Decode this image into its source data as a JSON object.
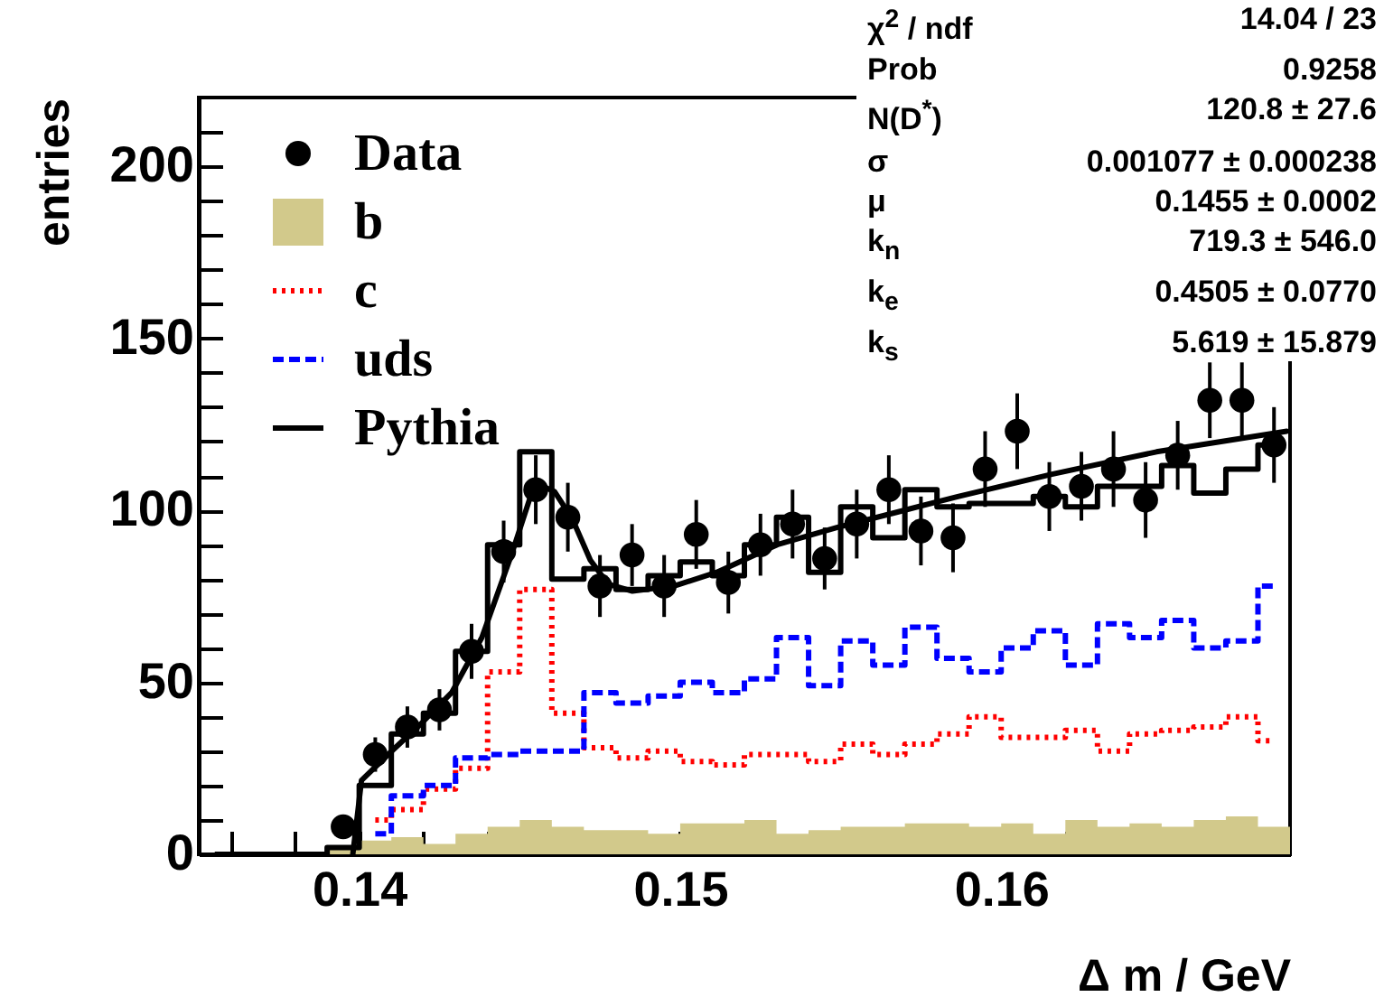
{
  "chart_data": {
    "type": "histogram",
    "xlabel": "Δ m / GeV",
    "ylabel": "entries",
    "bins": [
      0.135,
      0.136,
      0.137,
      0.138,
      0.139,
      0.14,
      0.141,
      0.142,
      0.143,
      0.144,
      0.145,
      0.146,
      0.147,
      0.148,
      0.149,
      0.15,
      0.151,
      0.152,
      0.153,
      0.154,
      0.155,
      0.156,
      0.157,
      0.158,
      0.159,
      0.16,
      0.161,
      0.162,
      0.163,
      0.164,
      0.165,
      0.166,
      0.167,
      0.168,
      0.169
    ],
    "series": [
      {
        "name": "Data",
        "type": "scatter",
        "color": "#000000",
        "marker": "circle",
        "x": [
          0.1395,
          0.1405,
          0.1415,
          0.1425,
          0.1435,
          0.1445,
          0.1455,
          0.1465,
          0.1475,
          0.1485,
          0.1495,
          0.1505,
          0.1515,
          0.1525,
          0.1535,
          0.1545,
          0.1555,
          0.1565,
          0.1575,
          0.1585,
          0.1595,
          0.1605,
          0.1615,
          0.1625,
          0.1635,
          0.1645,
          0.1655,
          0.1665,
          0.1675,
          0.1685
        ],
        "values": [
          8,
          29,
          37,
          42,
          59,
          88,
          106,
          98,
          78,
          87,
          78,
          93,
          79,
          90,
          96,
          86,
          96,
          106,
          94,
          92,
          112,
          123,
          104,
          107,
          112,
          103,
          116,
          132,
          132,
          119
        ],
        "errors": [
          3,
          5,
          6,
          6,
          8,
          9,
          10,
          10,
          9,
          9,
          9,
          10,
          9,
          9,
          10,
          9,
          10,
          10,
          10,
          10,
          11,
          11,
          10,
          10,
          11,
          11,
          10,
          11,
          11,
          11
        ]
      },
      {
        "name": "b",
        "type": "histogram",
        "color": "#d2c98b",
        "values": [
          0,
          0,
          0,
          0,
          2,
          4,
          5,
          3,
          6,
          8,
          10,
          8,
          7,
          7,
          6,
          9,
          9,
          10,
          6,
          7,
          8,
          8,
          9,
          9,
          8,
          9,
          6,
          10,
          8,
          9,
          8,
          10,
          11,
          8
        ]
      },
      {
        "name": "c",
        "type": "step",
        "color": "#ff0000",
        "line_style": "dotted",
        "x": [
          0.1405,
          0.1415,
          0.1425,
          0.1435,
          0.1445,
          0.1455,
          0.1465,
          0.1475,
          0.1485,
          0.1495,
          0.1505,
          0.1515,
          0.1525,
          0.1535,
          0.1545,
          0.1555,
          0.1565,
          0.1575,
          0.1585,
          0.1595,
          0.1605,
          0.1615,
          0.1625,
          0.1635,
          0.1645,
          0.1655,
          0.1665,
          0.1675,
          0.1685
        ],
        "values": [
          10,
          13,
          19,
          25,
          53,
          77,
          41,
          31,
          28,
          30,
          27,
          26,
          29,
          29,
          27,
          32,
          29,
          32,
          35,
          40,
          34,
          34,
          36,
          30,
          35,
          36,
          37,
          40,
          33
        ]
      },
      {
        "name": "uds",
        "type": "step",
        "color": "#0000ff",
        "line_style": "dashed",
        "x": [
          0.1405,
          0.1415,
          0.1425,
          0.1435,
          0.1445,
          0.1455,
          0.1465,
          0.1475,
          0.1485,
          0.1495,
          0.1505,
          0.1515,
          0.1525,
          0.1535,
          0.1545,
          0.1555,
          0.1565,
          0.1575,
          0.1585,
          0.1595,
          0.1605,
          0.1615,
          0.1625,
          0.1635,
          0.1645,
          0.1655,
          0.1665,
          0.1675,
          0.1685
        ],
        "values": [
          6,
          17,
          20,
          28,
          29,
          30,
          30,
          47,
          44,
          46,
          50,
          47,
          51,
          63,
          49,
          62,
          55,
          66,
          57,
          53,
          60,
          65,
          55,
          67,
          63,
          68,
          60,
          62,
          78
        ]
      },
      {
        "name": "Pythia",
        "type": "step",
        "color": "#000000",
        "line_style": "solid",
        "x": [
          0.1355,
          0.1365,
          0.1375,
          0.1385,
          0.1395,
          0.1405,
          0.1415,
          0.1425,
          0.1435,
          0.1445,
          0.1455,
          0.1465,
          0.1475,
          0.1485,
          0.1495,
          0.1505,
          0.1515,
          0.1525,
          0.1535,
          0.1545,
          0.1555,
          0.1565,
          0.1575,
          0.1585,
          0.1595,
          0.1605,
          0.1615,
          0.1625,
          0.1635,
          0.1645,
          0.1655,
          0.1665,
          0.1675,
          0.1685
        ],
        "values": [
          0,
          0,
          0,
          0,
          2,
          20,
          35,
          41,
          59,
          90,
          117,
          80,
          83,
          77,
          81,
          85,
          81,
          90,
          98,
          82,
          101,
          92,
          106,
          101,
          102,
          102,
          104,
          101,
          107,
          107,
          113,
          105,
          112,
          119
        ]
      },
      {
        "type": "line",
        "color": "#000000",
        "line_style": "solid",
        "x": [
          0.1398,
          0.14007,
          0.14101,
          0.14193,
          0.14288,
          0.14382,
          0.14474,
          0.1453,
          0.14559,
          0.14608,
          0.14664,
          0.1472,
          0.14776,
          0.14851,
          0.14981,
          0.15114,
          0.15302,
          0.15488,
          0.15677,
          0.15865,
          0.16158,
          0.16484,
          0.1689
        ],
        "values": [
          0,
          21.5,
          30,
          38,
          47,
          63,
          87,
          103,
          107.5,
          105.5,
          97.5,
          85.5,
          78.5,
          76.5,
          78,
          82,
          90,
          95,
          99.5,
          104,
          110.5,
          117,
          123
        ]
      }
    ],
    "xlim": [
      0.135,
      0.169
    ],
    "ylim": [
      0,
      220
    ],
    "xticks": [
      {
        "value": 0.136,
        "label": null
      },
      {
        "value": 0.138,
        "label": null
      },
      0.14,
      {
        "value": 0.142,
        "label": null
      },
      {
        "value": 0.144,
        "label": null
      },
      {
        "value": 0.146,
        "label": null
      },
      {
        "value": 0.148,
        "label": null
      },
      0.15,
      {
        "value": 0.152,
        "label": null
      },
      {
        "value": 0.154,
        "label": null
      },
      {
        "value": 0.156,
        "label": null
      },
      {
        "value": 0.158,
        "label": null
      },
      0.16,
      {
        "value": 0.162,
        "label": null
      },
      {
        "value": 0.164,
        "label": null
      },
      {
        "value": 0.166,
        "label": null
      },
      {
        "value": 0.168,
        "label": null
      }
    ],
    "yticks": [
      0,
      {
        "value": 10,
        "label": null
      },
      {
        "value": 20,
        "label": null
      },
      {
        "value": 30,
        "label": null
      },
      {
        "value": 40,
        "label": null
      },
      50,
      {
        "value": 60,
        "label": null
      },
      {
        "value": 70,
        "label": null
      },
      {
        "value": 80,
        "label": null
      },
      {
        "value": 90,
        "label": null
      },
      100,
      {
        "value": 110,
        "label": null
      },
      {
        "value": 120,
        "label": null
      },
      {
        "value": 130,
        "label": null
      },
      {
        "value": 140,
        "label": null
      },
      150,
      {
        "value": 160,
        "label": null
      },
      {
        "value": 170,
        "label": null
      },
      {
        "value": 180,
        "label": null
      },
      {
        "value": 190,
        "label": null
      },
      200,
      {
        "value": 210,
        "label": null
      }
    ],
    "legend": "top left",
    "annotations": [
      "χ$^{2}$ / ndf",
      "14.04 / 23",
      "Prob",
      "0.9258",
      "N(D$^{*}$)",
      "120.8 ± 27.6",
      "σ",
      "0.001077 ± 0.000238",
      "μ",
      "0.1455 ± 0.0002",
      "k$_{n}$",
      "719.3 ± 546.0",
      "k$_{e}$",
      "0.4505 ± 0.0770",
      "k$_{s}$",
      "5.619 ± 15.879"
    ]
  }
}
